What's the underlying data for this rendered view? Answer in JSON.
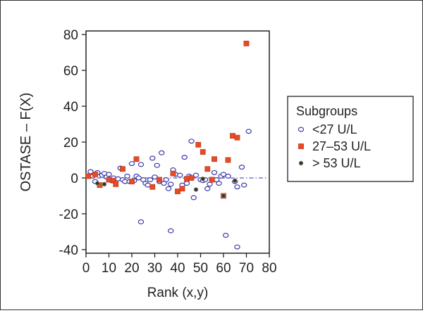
{
  "chart_data": {
    "type": "scatter",
    "title": "",
    "xlabel": "Rank (x,y)",
    "ylabel": "OSTASE – F(X)",
    "xlim": [
      0,
      80
    ],
    "ylim": [
      -42,
      82
    ],
    "x_ticks": [
      "0",
      "10",
      "20",
      "30",
      "40",
      "50",
      "60",
      "70",
      "80"
    ],
    "y_ticks": [
      "80",
      "60",
      "40",
      "20",
      "0",
      "-20",
      "-40"
    ],
    "grid": false,
    "legend_position": "right",
    "legend_title": "Subgroups",
    "reference_line": {
      "y": 0,
      "style": "dash-dot",
      "color": "#5a5acc"
    },
    "series": [
      {
        "name": "<27 U/L",
        "marker": "open-circle",
        "color": "#3a3aa8",
        "points": [
          [
            2,
            3.5
          ],
          [
            3,
            1
          ],
          [
            4,
            -2
          ],
          [
            5,
            3
          ],
          [
            7,
            1.5
          ],
          [
            8,
            2.5
          ],
          [
            9,
            0.5
          ],
          [
            10,
            2
          ],
          [
            11,
            -1.5
          ],
          [
            12,
            0
          ],
          [
            14,
            -0.5
          ],
          [
            15,
            5.5
          ],
          [
            16,
            -1
          ],
          [
            17,
            -2
          ],
          [
            18,
            1
          ],
          [
            19,
            -2
          ],
          [
            20,
            8
          ],
          [
            21,
            -1.5
          ],
          [
            22,
            1
          ],
          [
            23,
            0
          ],
          [
            24,
            7.5
          ],
          [
            25,
            -1
          ],
          [
            26,
            -3
          ],
          [
            27,
            -4
          ],
          [
            28,
            -1
          ],
          [
            29,
            11
          ],
          [
            30,
            0.5
          ],
          [
            31,
            7
          ],
          [
            32,
            -2
          ],
          [
            33,
            14
          ],
          [
            34,
            -3
          ],
          [
            35,
            -1
          ],
          [
            36,
            -6
          ],
          [
            37,
            -3.5
          ],
          [
            38,
            4.5
          ],
          [
            39,
            2
          ],
          [
            41,
            1.5
          ],
          [
            42,
            -4
          ],
          [
            43,
            11.5
          ],
          [
            44,
            -3
          ],
          [
            45,
            1
          ],
          [
            46,
            20.5
          ],
          [
            47,
            -11
          ],
          [
            48,
            1.5
          ],
          [
            50,
            -1
          ],
          [
            51,
            -1.5
          ],
          [
            52,
            -1
          ],
          [
            53,
            -6
          ],
          [
            54,
            -3.5
          ],
          [
            55,
            -1
          ],
          [
            56,
            3
          ],
          [
            57,
            -1
          ],
          [
            58,
            -3
          ],
          [
            59,
            1
          ],
          [
            60,
            2
          ],
          [
            61,
            -32
          ],
          [
            62,
            1
          ],
          [
            65,
            -2
          ],
          [
            66,
            -5
          ],
          [
            68,
            6
          ],
          [
            69,
            -4
          ],
          [
            71,
            26
          ],
          [
            24,
            -24.5
          ],
          [
            37,
            -29.5
          ],
          [
            66,
            -38.5
          ]
        ]
      },
      {
        "name": "27–53 U/L",
        "marker": "square",
        "color": "#e84a24",
        "points": [
          [
            1,
            1
          ],
          [
            4,
            2
          ],
          [
            6,
            -4
          ],
          [
            10,
            -1
          ],
          [
            12,
            -1.5
          ],
          [
            13,
            -3.5
          ],
          [
            16,
            5
          ],
          [
            20,
            -2
          ],
          [
            22,
            10.5
          ],
          [
            29,
            -5
          ],
          [
            32,
            -1
          ],
          [
            38,
            2.5
          ],
          [
            40,
            -7.5
          ],
          [
            42,
            -6
          ],
          [
            44,
            -0.5
          ],
          [
            46,
            0
          ],
          [
            49,
            18.5
          ],
          [
            51,
            14.5
          ],
          [
            53,
            5
          ],
          [
            55,
            -1
          ],
          [
            56,
            10.5
          ],
          [
            60,
            -10
          ],
          [
            62,
            10
          ],
          [
            64,
            23.5
          ],
          [
            66,
            22.5
          ],
          [
            70,
            75
          ]
        ]
      },
      {
        "name": "> 53 U/L",
        "marker": "dot",
        "color": "#333333",
        "points": [
          [
            5,
            -3
          ],
          [
            8,
            -3.5
          ],
          [
            48,
            -6.5
          ],
          [
            51,
            -0.5
          ],
          [
            60,
            -10
          ],
          [
            65,
            -1.5
          ]
        ]
      }
    ]
  }
}
